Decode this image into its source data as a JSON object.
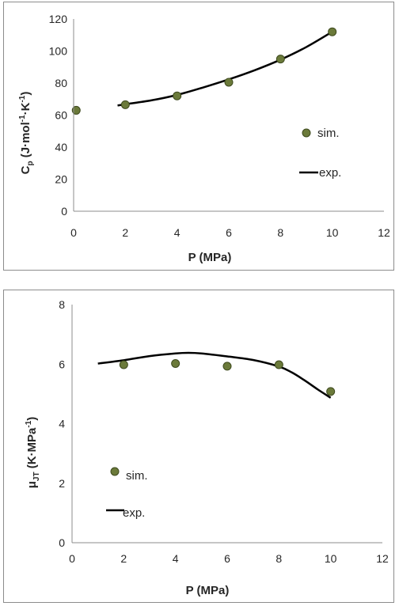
{
  "chart_data": [
    {
      "type": "scatter",
      "xlabel": "P (MPa)",
      "ylabel": "Cp (J·mol-1·K-1)",
      "ylabel_parts": {
        "main": "C",
        "sub": "p",
        "unit_a": " (J·mol",
        "sup1": "-1",
        "unit_b": "·K",
        "sup2": "-1",
        "unit_c": ")"
      },
      "xlim": [
        0,
        12
      ],
      "ylim": [
        0,
        120
      ],
      "xticks": [
        "0",
        "2",
        "4",
        "6",
        "8",
        "10",
        "12"
      ],
      "yticks": [
        "0",
        "20",
        "40",
        "60",
        "80",
        "100",
        "120"
      ],
      "grid": false,
      "legend_position": "right",
      "series": [
        {
          "name": "sim.",
          "kind": "markers",
          "x": [
            0.1,
            2,
            4,
            6,
            8,
            10
          ],
          "y": [
            63,
            66.5,
            72,
            80.5,
            95,
            112
          ]
        },
        {
          "name": "exp.",
          "kind": "line",
          "x": [
            1.7,
            2,
            3,
            4,
            5,
            6,
            7,
            8,
            9,
            10
          ],
          "y": [
            66,
            66.8,
            69.2,
            72.6,
            77.2,
            82.3,
            88,
            94.6,
            102.5,
            112
          ]
        }
      ]
    },
    {
      "type": "scatter",
      "xlabel": "P (MPa)",
      "ylabel": "μJT (K·MPa-1)",
      "ylabel_parts": {
        "main": "μ",
        "sub": "JT",
        "unit_a": " (K·MPa",
        "sup1": "-1",
        "unit_c": ")"
      },
      "xlim": [
        0,
        12
      ],
      "ylim": [
        0,
        8
      ],
      "xticks": [
        "0",
        "2",
        "4",
        "6",
        "8",
        "10",
        "12"
      ],
      "yticks": [
        "0",
        "2",
        "4",
        "6",
        "8"
      ],
      "grid": false,
      "legend_position": "left",
      "series": [
        {
          "name": "sim.",
          "kind": "markers",
          "x": [
            2,
            4,
            6,
            8,
            10
          ],
          "y": [
            5.98,
            6.02,
            5.93,
            5.98,
            5.08
          ]
        },
        {
          "name": "exp.",
          "kind": "line",
          "x": [
            1,
            2,
            3,
            4,
            4.5,
            5,
            6,
            7,
            8,
            8.5,
            9,
            9.5,
            10
          ],
          "y": [
            6.02,
            6.13,
            6.27,
            6.36,
            6.38,
            6.36,
            6.26,
            6.14,
            5.92,
            5.72,
            5.45,
            5.15,
            4.87
          ]
        }
      ]
    }
  ]
}
